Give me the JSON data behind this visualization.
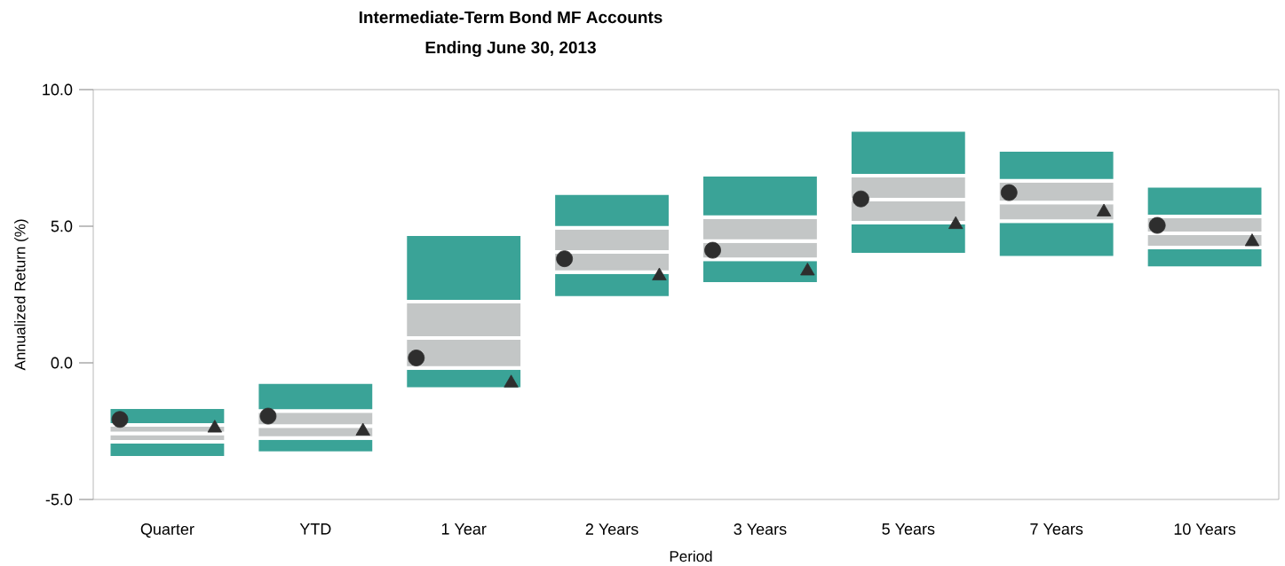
{
  "chart_data": {
    "type": "bar",
    "title": "Intermediate-Term Bond MF Accounts",
    "subtitle": "Ending June 30, 2013",
    "xlabel": "Period",
    "ylabel": "Annualized Return (%)",
    "categories": [
      "Quarter",
      "YTD",
      "1 Year",
      "2 Years",
      "3 Years",
      "5 Years",
      "7 Years",
      "10 Years"
    ],
    "ylim": [
      -5,
      10
    ],
    "yticks": [
      {
        "value": -5,
        "label": "-5.0"
      },
      {
        "value": 0,
        "label": "0.0"
      },
      {
        "value": 5,
        "label": "5.0"
      },
      {
        "value": 10,
        "label": "10.0"
      }
    ],
    "series": [
      {
        "color": "#3aa397",
        "base": [
          -3.47,
          -3.3,
          -0.96,
          2.38,
          2.89,
          3.96,
          3.85,
          3.47
        ],
        "values": [
          0.58,
          0.55,
          0.77,
          0.94,
          0.9,
          1.17,
          1.34,
          0.75
        ]
      },
      {
        "color": "#c3c6c6",
        "base": [
          -2.89,
          -2.75,
          -0.19,
          3.32,
          3.79,
          5.13,
          5.19,
          4.22
        ],
        "values": [
          0.31,
          0.44,
          1.1,
          0.74,
          0.67,
          0.84,
          0.68,
          0.52
        ]
      },
      {
        "color": "#c3c6c6",
        "base": [
          -2.58,
          -2.31,
          0.91,
          4.06,
          4.46,
          5.97,
          5.87,
          4.74
        ],
        "values": [
          0.31,
          0.55,
          1.33,
          0.88,
          0.87,
          0.88,
          0.79,
          0.62
        ]
      },
      {
        "color": "#3aa397",
        "base": [
          -2.27,
          -1.76,
          2.24,
          4.94,
          5.33,
          6.85,
          6.66,
          5.36
        ],
        "values": [
          0.65,
          1.05,
          2.47,
          1.27,
          1.55,
          1.67,
          1.13,
          1.12
        ]
      },
      {
        "type": "scatter",
        "marker": "circle",
        "color": "#2e2e2e",
        "x": [
          "Quarter",
          "YTD",
          "1 Year",
          "2 Years",
          "3 Years",
          "5 Years",
          "7 Years",
          "10 Years"
        ],
        "values": [
          -2.07,
          -1.95,
          0.18,
          3.81,
          4.12,
          6.0,
          6.23,
          5.03
        ]
      },
      {
        "type": "scatter",
        "marker": "triangle",
        "color": "#2e2e2e",
        "x": [
          "Quarter",
          "YTD",
          "1 Year",
          "2 Years",
          "3 Years",
          "5 Years",
          "7 Years",
          "10 Years"
        ],
        "values": [
          -2.39,
          -2.5,
          -0.74,
          3.18,
          3.36,
          5.06,
          5.52,
          4.43
        ]
      }
    ]
  }
}
